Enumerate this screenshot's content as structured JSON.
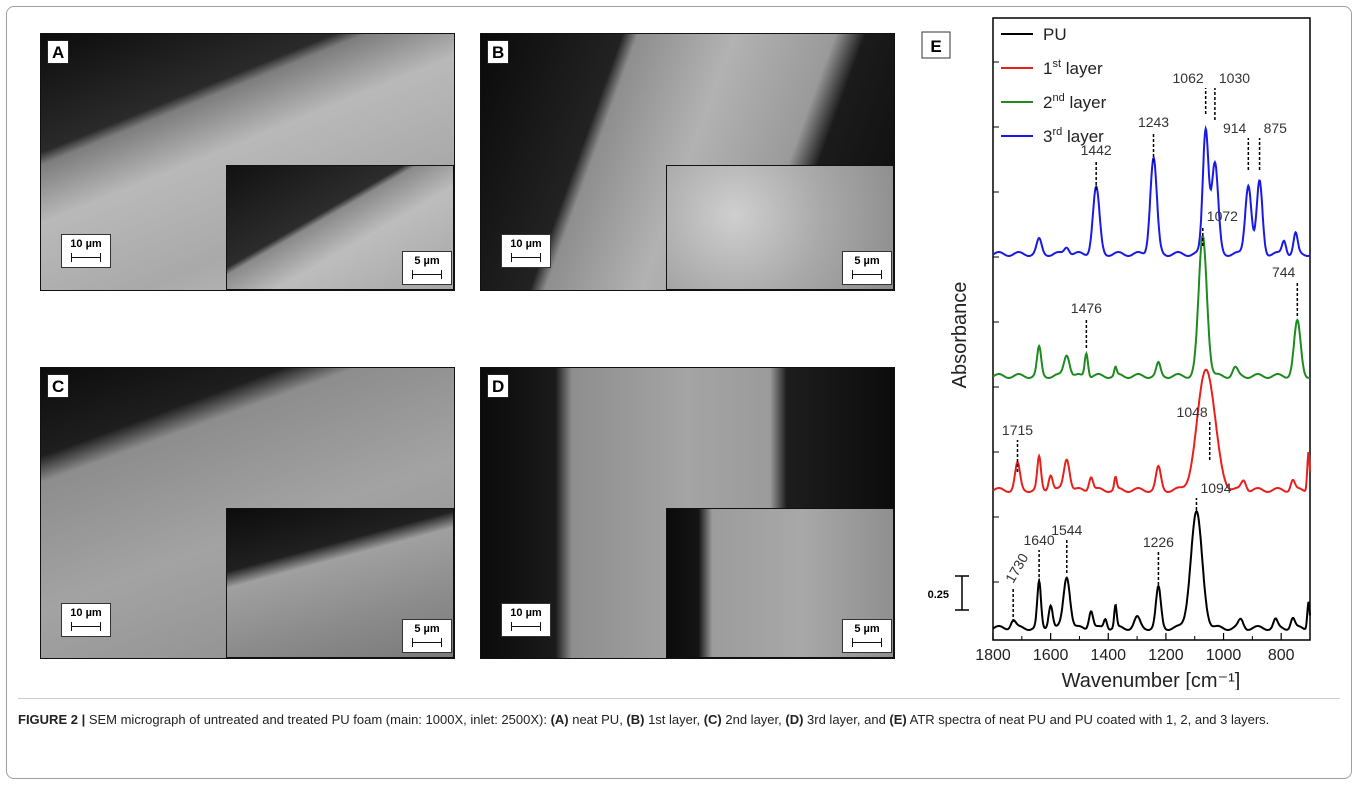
{
  "panels": {
    "a": {
      "letter": "A",
      "main_scale": "10 µm",
      "inset_scale": "5 µm"
    },
    "b": {
      "letter": "B",
      "main_scale": "10 µm",
      "inset_scale": "5 µm"
    },
    "c": {
      "letter": "C",
      "main_scale": "10 µm",
      "inset_scale": "5 µm"
    },
    "d": {
      "letter": "D",
      "main_scale": "10 µm",
      "inset_scale": "5 µm"
    }
  },
  "caption": {
    "figure_label": "FIGURE 2 |",
    "t1": " SEM micrograph of untreated and treated PU foam (main: 1000X, inlet: 2500X): ",
    "la": "(A)",
    "t2": " neat PU, ",
    "lb": "(B)",
    "t3": " 1st layer, ",
    "lc": "(C)",
    "t4": " 2nd layer, ",
    "ld": "(D)",
    "t5": " 3rd layer, and ",
    "le": "(E)",
    "t6": " ATR spectra of neat PU and PU coated with 1, 2, and 3 layers."
  },
  "chart_data": {
    "type": "line",
    "panel_letter": "E",
    "xlabel": "Wavenumber [cm⁻¹]",
    "ylabel": "Absorbance",
    "xlim": [
      1800,
      700
    ],
    "x_reversed": true,
    "x_ticks": [
      1800,
      1600,
      1400,
      1200,
      1000,
      800
    ],
    "y_ticks_shown": false,
    "scale_bar_label": "0.25",
    "legend_placement": "top-left",
    "series": [
      {
        "name": "PU",
        "color": "#000000",
        "peaks": [
          {
            "x": 1730,
            "label": "1730"
          },
          {
            "x": 1640,
            "label": "1640"
          },
          {
            "x": 1544,
            "label": "1544"
          },
          {
            "x": 1226,
            "label": "1226"
          },
          {
            "x": 1094,
            "label": "1094"
          }
        ]
      },
      {
        "name": "1st layer",
        "color": "#e8201c",
        "peaks": [
          {
            "x": 1715,
            "label": "1715"
          },
          {
            "x": 1048,
            "label": "1048"
          }
        ]
      },
      {
        "name": "2nd layer",
        "color": "#1f8a1f",
        "peaks": [
          {
            "x": 1476,
            "label": "1476"
          },
          {
            "x": 1072,
            "label": "1072"
          },
          {
            "x": 744,
            "label": "744"
          }
        ]
      },
      {
        "name": "3rd layer",
        "color": "#1a1ae6",
        "peaks": [
          {
            "x": 1442,
            "label": "1442"
          },
          {
            "x": 1243,
            "label": "1243"
          },
          {
            "x": 1062,
            "label": "1062"
          },
          {
            "x": 1030,
            "label": "1030"
          },
          {
            "x": 914,
            "label": "914"
          },
          {
            "x": 875,
            "label": "875"
          }
        ]
      }
    ],
    "legend": [
      {
        "base": "PU",
        "sup": ""
      },
      {
        "base": "1",
        "sup": "st",
        "rest": " layer"
      },
      {
        "base": "2",
        "sup": "nd",
        "rest": " layer"
      },
      {
        "base": "3",
        "sup": "rd",
        "rest": " layer"
      }
    ]
  }
}
